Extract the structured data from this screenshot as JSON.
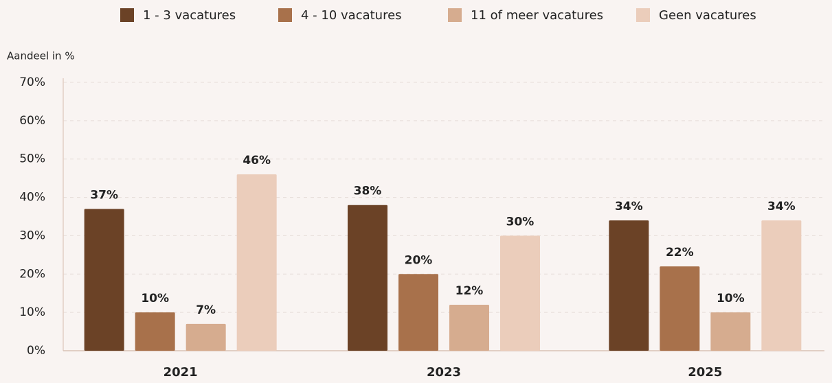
{
  "chart_data": {
    "type": "bar",
    "y_label": "Aandeel in %",
    "categories": [
      "2021",
      "2023",
      "2025"
    ],
    "series": [
      {
        "name": "1 - 3 vacatures",
        "color": "#6b4226",
        "values": [
          37,
          38,
          34
        ],
        "value_labels": [
          "37%",
          "38%",
          "34%"
        ]
      },
      {
        "name": "4 - 10 vacatures",
        "color": "#a8714b",
        "values": [
          10,
          20,
          22
        ],
        "value_labels": [
          "10%",
          "20%",
          "22%"
        ]
      },
      {
        "name": "11 of meer vacatures",
        "color": "#d6ac8f",
        "values": [
          7,
          12,
          10
        ],
        "value_labels": [
          "7%",
          "12%",
          "10%"
        ]
      },
      {
        "name": "Geen vacatures",
        "color": "#ebcdbb",
        "values": [
          46,
          30,
          34
        ],
        "value_labels": [
          "46%",
          "30%",
          "34%"
        ]
      }
    ],
    "ylim": [
      0,
      70
    ],
    "yticks": [
      {
        "value": 0,
        "label": "0%"
      },
      {
        "value": 10,
        "label": "10%"
      },
      {
        "value": 20,
        "label": "20%"
      },
      {
        "value": 30,
        "label": "30%"
      },
      {
        "value": 40,
        "label": "40%"
      },
      {
        "value": 50,
        "label": "50%"
      },
      {
        "value": 60,
        "label": "60%"
      },
      {
        "value": 70,
        "label": "70%"
      }
    ],
    "grid": true,
    "legend": "top"
  }
}
